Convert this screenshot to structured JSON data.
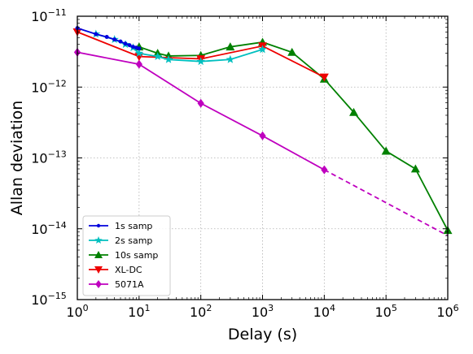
{
  "chart_data": {
    "type": "line",
    "xlabel": "Delay (s)",
    "ylabel": "Allan deviation",
    "xscale": "log",
    "yscale": "log",
    "xlim": [
      1,
      1000000
    ],
    "ylim": [
      1e-15,
      1e-11
    ],
    "x_ticks": [
      {
        "base": "10",
        "exp": "0",
        "value": 1
      },
      {
        "base": "10",
        "exp": "1",
        "value": 10
      },
      {
        "base": "10",
        "exp": "2",
        "value": 100
      },
      {
        "base": "10",
        "exp": "3",
        "value": 1000
      },
      {
        "base": "10",
        "exp": "4",
        "value": 10000
      },
      {
        "base": "10",
        "exp": "5",
        "value": 100000
      },
      {
        "base": "10",
        "exp": "6",
        "value": 1000000
      }
    ],
    "y_ticks": [
      {
        "base": "10",
        "exp": "−15",
        "value": 1e-15
      },
      {
        "base": "10",
        "exp": "−14",
        "value": 1e-14
      },
      {
        "base": "10",
        "exp": "−13",
        "value": 1e-13
      },
      {
        "base": "10",
        "exp": "−12",
        "value": 1e-12
      },
      {
        "base": "10",
        "exp": "−11",
        "value": 1e-11
      }
    ],
    "grid": true,
    "legend_position": "lower-left",
    "series": [
      {
        "name": "1s samp",
        "color": "#0000dd",
        "marker": "circle",
        "x": [
          1,
          2,
          3,
          4,
          5,
          6,
          7,
          8,
          9,
          10
        ],
        "y": [
          6.8e-12,
          5.6e-12,
          5.1e-12,
          4.7e-12,
          4.4e-12,
          4.1e-12,
          3.9e-12,
          3.7e-12,
          3.6e-12,
          3.5e-12
        ]
      },
      {
        "name": "2s samp",
        "color": "#00bfbf",
        "marker": "star",
        "x": [
          2,
          4,
          6,
          8,
          10,
          20,
          30,
          100,
          300,
          1000
        ],
        "y": [
          5.6e-12,
          4.7e-12,
          4e-12,
          3.6e-12,
          3e-12,
          2.7e-12,
          2.45e-12,
          2.3e-12,
          2.45e-12,
          3.4e-12
        ]
      },
      {
        "name": "10s samp",
        "color": "#008000",
        "marker": "triangle-up",
        "x": [
          10,
          20,
          30,
          100,
          300,
          1000,
          3000,
          10000,
          30000,
          100000,
          300000,
          1000000
        ],
        "y": [
          3.7e-12,
          3e-12,
          2.75e-12,
          2.8e-12,
          3.7e-12,
          4.3e-12,
          3.1e-12,
          1.3e-12,
          4.4e-13,
          1.25e-13,
          7e-14,
          9.5e-15
        ]
      },
      {
        "name": "XL-DC",
        "color": "#ee0000",
        "marker": "triangle-down",
        "x": [
          1,
          10,
          100,
          1000,
          10000
        ],
        "y": [
          6e-12,
          2.7e-12,
          2.5e-12,
          3.8e-12,
          1.38e-12
        ]
      },
      {
        "name": "5071A",
        "color": "#bf00bf",
        "marker": "diamond",
        "x": [
          1,
          10,
          100,
          1000,
          10000
        ],
        "y": [
          3.1e-12,
          2.1e-12,
          5.9e-13,
          2.05e-13,
          6.8e-14
        ],
        "extrapolated": {
          "x": [
            10000,
            1000000
          ],
          "y": [
            6.8e-14,
            8e-15
          ],
          "style": "dashed"
        }
      }
    ]
  }
}
